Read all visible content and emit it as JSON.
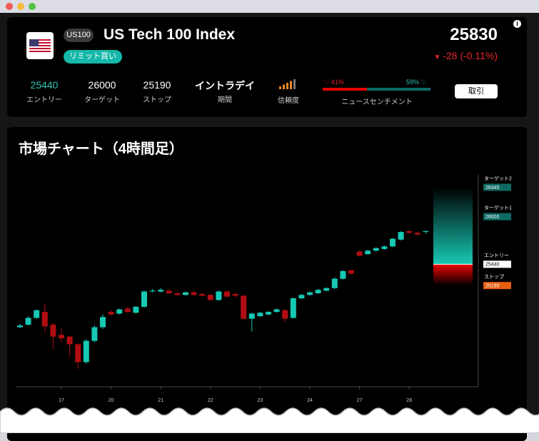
{
  "header": {
    "badge": "US100",
    "title": "US Tech 100 Index",
    "order_tag": "リミット買い",
    "price": "25830",
    "change": "-28 (-0.11%)",
    "stats": [
      {
        "value": "25440",
        "label": "エントリー"
      },
      {
        "value": "26000",
        "label": "ターゲット"
      },
      {
        "value": "25190",
        "label": "ストップ"
      },
      {
        "value": "イントラデイ",
        "label": "期間"
      }
    ],
    "confidence": {
      "level": 4,
      "label": "信頼度"
    },
    "sentiment": {
      "bearish": {
        "value": 41,
        "label": "41%"
      },
      "bullish": {
        "value": 59,
        "label": "59%"
      },
      "label": "ニュースセンチメント"
    },
    "button": "取引"
  },
  "chart_data": {
    "type": "candlestick",
    "title": "市場チャート（4時間足）",
    "categories": [
      null,
      null,
      null,
      null,
      null,
      "17",
      null,
      null,
      null,
      null,
      null,
      "20",
      null,
      null,
      null,
      null,
      null,
      "21",
      null,
      null,
      null,
      null,
      null,
      "22",
      null,
      null,
      null,
      null,
      null,
      "23",
      null,
      null,
      null,
      null,
      null,
      "24",
      null,
      null,
      null,
      null,
      null,
      "27",
      null,
      null,
      null,
      null,
      null,
      "28",
      null,
      null
    ],
    "open": [
      24700,
      24730,
      24810,
      24880,
      24730,
      24610,
      24590,
      24500,
      24290,
      24540,
      24700,
      24880,
      24860,
      24920,
      24870,
      24940,
      25120,
      25120,
      25130,
      25100,
      25080,
      25110,
      25090,
      25080,
      25020,
      25120,
      25090,
      25070,
      24800,
      24830,
      24850,
      24880,
      24900,
      24810,
      25040,
      25080,
      25100,
      25130,
      25160,
      25270,
      25370,
      25590,
      25560,
      25600,
      25620,
      25650,
      25730,
      25830,
      25810,
      25820
    ],
    "high": [
      24740,
      24830,
      24910,
      24980,
      24750,
      24690,
      24600,
      24510,
      24560,
      24720,
      24850,
      24900,
      24920,
      24940,
      24950,
      25130,
      25150,
      25160,
      25150,
      25110,
      25120,
      25130,
      25100,
      25090,
      25130,
      25130,
      25110,
      25080,
      24870,
      24880,
      24890,
      24920,
      24910,
      25050,
      25090,
      25120,
      25150,
      25170,
      25290,
      25370,
      25380,
      25600,
      25610,
      25640,
      25660,
      25750,
      25830,
      25840,
      25820,
      25840
    ],
    "low": [
      24690,
      24720,
      24800,
      24640,
      24440,
      24520,
      24350,
      24210,
      24270,
      24520,
      24680,
      24840,
      24850,
      24870,
      24860,
      24930,
      25110,
      25110,
      25090,
      25070,
      25070,
      25060,
      25060,
      25010,
      25010,
      25050,
      25050,
      24790,
      24650,
      24820,
      24840,
      24870,
      24760,
      24800,
      25030,
      25070,
      25090,
      25120,
      25150,
      25260,
      25320,
      25530,
      25550,
      25590,
      25610,
      25640,
      25720,
      25800,
      25780,
      25800
    ],
    "close": [
      24720,
      24810,
      24900,
      24710,
      24590,
      24570,
      24500,
      24290,
      24540,
      24700,
      24820,
      24850,
      24910,
      24880,
      24940,
      25120,
      25130,
      25140,
      25100,
      25080,
      25110,
      25080,
      25070,
      25020,
      25120,
      25060,
      25070,
      24800,
      24860,
      24870,
      24880,
      24910,
      24800,
      25040,
      25080,
      25110,
      25140,
      25160,
      25270,
      25360,
      25330,
      25540,
      25600,
      25630,
      25650,
      25740,
      25820,
      25810,
      25790,
      25830
    ],
    "ylim": [
      24000,
      26500
    ],
    "up_color": "#17c9b4",
    "down_color": "#b00d12",
    "levels": [
      {
        "label": "ターゲット2",
        "value": 26345,
        "color": "#0e6b64",
        "text_color": "#ffffff"
      },
      {
        "label": "ターゲット1",
        "value": 26000,
        "color": "#0e6b64",
        "text_color": "#ffffff"
      },
      {
        "label": "エントリー",
        "value": 25440,
        "color": "#ffffff",
        "text_color": "#000000"
      },
      {
        "label": "ストップ",
        "value": 25190,
        "color": "#e8600f",
        "text_color": "#ffffff"
      }
    ]
  }
}
